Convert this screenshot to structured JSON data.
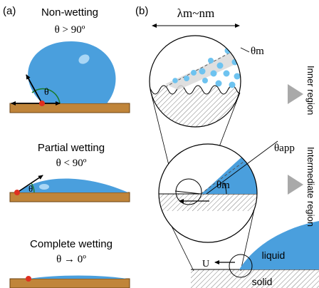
{
  "colors": {
    "drop_fill": "#4a9fdd",
    "drop_highlight": "#a9d6f5",
    "substrate": "#c0853a",
    "substrate_edge": "#6b4210",
    "contact_point": "#e03020",
    "particles": "#6ec3f0",
    "arrow": "#000000",
    "angle_arc": "#1a7a2a",
    "hatch": "#777777",
    "side_arrow": "#a9a9a9"
  },
  "panel_a": {
    "label": "(a)",
    "nonwetting": {
      "title": "Non-wetting",
      "condition": "θ > 90º",
      "angle_label": "θ"
    },
    "partial": {
      "title": "Partial wetting",
      "condition": "θ < 90º",
      "angle_label": "θ"
    },
    "complete": {
      "title": "Complete wetting",
      "condition": "θ → 0º"
    }
  },
  "panel_b": {
    "label": "(b)",
    "scale_label": "λm~nm",
    "theta_m": "θm",
    "theta_app": "θapp",
    "inner_region": "Inner region",
    "intermediate_region": "Intermediate region",
    "liquid": "liquid",
    "solid": "solid",
    "velocity": "U"
  }
}
